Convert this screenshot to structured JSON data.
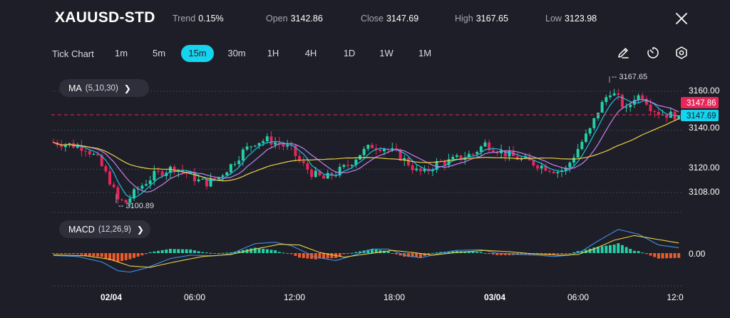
{
  "header": {
    "symbol": "XAUUSD-STD",
    "trend_label": "Trend",
    "trend_value": "0.15%",
    "open_label": "Open",
    "open_value": "3142.86",
    "close_label": "Close",
    "close_value": "3147.69",
    "high_label": "High",
    "high_value": "3167.65",
    "low_label": "Low",
    "low_value": "3123.98",
    "close_icon": "close-icon"
  },
  "timeframes": {
    "label": "Tick Chart",
    "items": [
      "1m",
      "5m",
      "15m",
      "30m",
      "1H",
      "4H",
      "1D",
      "1W",
      "1M"
    ],
    "active": "15m"
  },
  "tools": [
    "edit-pen-icon",
    "timer-icon",
    "settings-gear-icon"
  ],
  "indicators": {
    "ma_name": "MA",
    "ma_params": "(5,10,30)",
    "macd_name": "MACD",
    "macd_params": "(12,26,9)"
  },
  "colors": {
    "background": "#1e1e28",
    "bull": "#25d0a4",
    "bear": "#e8265a",
    "accent": "#16d3ee",
    "ma5": "#1fbee4",
    "ma10": "#c183ee",
    "ma30": "#e9cf45",
    "macd_line": "#3e8fe8",
    "signal_line": "#e9cf45",
    "hist_pos": "#25d0a4",
    "hist_neg": "#ef5b2a"
  },
  "chart_data": {
    "type": "candlestick",
    "price_axis": {
      "ticks": [
        3108.0,
        3120.0,
        3140.0,
        3160.0
      ],
      "tick_labels": [
        "3108.00",
        "3120.00",
        "3140.00",
        "3160.00"
      ]
    },
    "time_axis": [
      "02/04",
      "06:00",
      "12:00",
      "18:00",
      "03/04",
      "06:00",
      "12:0"
    ],
    "range_high": 3167.65,
    "range_low": 3100.89,
    "range_high_label": "3167.65",
    "range_low_label": "3100.89",
    "open_price_label": "3147.86",
    "last_price_label": "3147.69",
    "macd_axis_label": "0.00",
    "price_path": [
      [
        0,
        3134
      ],
      [
        4,
        3133
      ],
      [
        9,
        3131
      ],
      [
        12,
        3125
      ],
      [
        15,
        3114
      ],
      [
        17,
        3104
      ],
      [
        19,
        3103
      ],
      [
        22,
        3110
      ],
      [
        26,
        3117
      ],
      [
        31,
        3121
      ],
      [
        34,
        3118
      ],
      [
        37,
        3114
      ],
      [
        39,
        3113
      ],
      [
        42,
        3116
      ],
      [
        45,
        3122
      ],
      [
        48,
        3129
      ],
      [
        51,
        3134
      ],
      [
        54,
        3135
      ],
      [
        57,
        3133
      ],
      [
        60,
        3130
      ],
      [
        62,
        3124
      ],
      [
        65,
        3118
      ],
      [
        68,
        3115
      ],
      [
        71,
        3118
      ],
      [
        74,
        3122
      ],
      [
        77,
        3128
      ],
      [
        80,
        3132
      ],
      [
        83,
        3131
      ],
      [
        86,
        3128
      ],
      [
        89,
        3123
      ],
      [
        91,
        3119
      ],
      [
        93,
        3118
      ],
      [
        96,
        3123
      ],
      [
        99,
        3124
      ],
      [
        102,
        3126
      ],
      [
        105,
        3128
      ],
      [
        108,
        3133
      ],
      [
        111,
        3130
      ],
      [
        114,
        3127
      ],
      [
        117,
        3125
      ],
      [
        120,
        3123
      ],
      [
        123,
        3121
      ],
      [
        126,
        3119
      ],
      [
        128,
        3120
      ],
      [
        130,
        3127
      ],
      [
        132,
        3134
      ],
      [
        134,
        3140
      ],
      [
        136,
        3150
      ],
      [
        138,
        3157
      ],
      [
        139,
        3160
      ],
      [
        141,
        3156
      ],
      [
        143,
        3150
      ],
      [
        145,
        3157
      ],
      [
        147,
        3158
      ],
      [
        149,
        3152
      ],
      [
        151,
        3149
      ],
      [
        153,
        3148
      ],
      [
        155,
        3147.7
      ]
    ],
    "macd_path": [
      [
        0,
        -0.35
      ],
      [
        6,
        -0.5
      ],
      [
        12,
        -1.3
      ],
      [
        16,
        -2.6
      ],
      [
        19,
        -2.8
      ],
      [
        23,
        -2.2
      ],
      [
        29,
        -0.8
      ],
      [
        34,
        -0.3
      ],
      [
        40,
        -0.4
      ],
      [
        44,
        -0.1
      ],
      [
        50,
        1.4
      ],
      [
        55,
        1.6
      ],
      [
        59,
        1.1
      ],
      [
        65,
        -0.6
      ],
      [
        70,
        -1.1
      ],
      [
        74,
        -0.4
      ],
      [
        79,
        0.6
      ],
      [
        83,
        0.6
      ],
      [
        87,
        -0.3
      ],
      [
        91,
        -0.7
      ],
      [
        96,
        0.0
      ],
      [
        100,
        0.4
      ],
      [
        106,
        0.5
      ],
      [
        110,
        0.0
      ],
      [
        116,
        -0.2
      ],
      [
        120,
        -0.3
      ],
      [
        124,
        -0.5
      ],
      [
        128,
        -0.3
      ],
      [
        131,
        0.3
      ],
      [
        135,
        1.8
      ],
      [
        140,
        3.5
      ],
      [
        145,
        2.8
      ],
      [
        150,
        1.2
      ],
      [
        155,
        0.8
      ]
    ],
    "signal_path": [
      [
        0,
        -0.25
      ],
      [
        8,
        -0.4
      ],
      [
        14,
        -0.9
      ],
      [
        19,
        -1.9
      ],
      [
        24,
        -2.1
      ],
      [
        30,
        -1.3
      ],
      [
        37,
        -0.5
      ],
      [
        44,
        -0.2
      ],
      [
        50,
        0.6
      ],
      [
        56,
        1.3
      ],
      [
        61,
        1.2
      ],
      [
        66,
        0.1
      ],
      [
        72,
        -0.6
      ],
      [
        78,
        -0.1
      ],
      [
        84,
        0.4
      ],
      [
        89,
        0.1
      ],
      [
        94,
        -0.3
      ],
      [
        100,
        0.1
      ],
      [
        107,
        0.4
      ],
      [
        113,
        0.2
      ],
      [
        119,
        -0.1
      ],
      [
        125,
        -0.3
      ],
      [
        130,
        -0.2
      ],
      [
        134,
        0.6
      ],
      [
        139,
        1.9
      ],
      [
        144,
        2.6
      ],
      [
        149,
        2.1
      ],
      [
        155,
        1.5
      ]
    ]
  }
}
